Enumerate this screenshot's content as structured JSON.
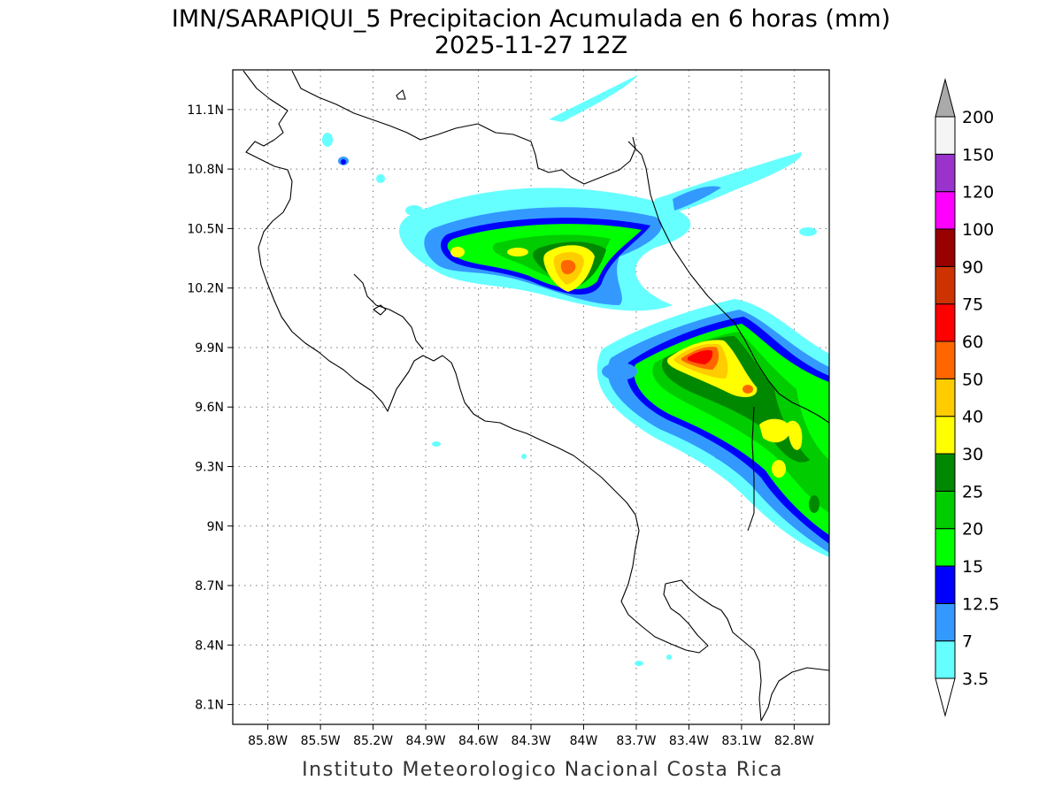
{
  "title": {
    "line1": "IMN/SARAPIQUI_5 Precipitacion Acumulada en 6 horas (mm)",
    "line2": "2025-11-27 12Z"
  },
  "footer": "Instituto Meteorologico Nacional Costa Rica",
  "map": {
    "lon_range": [
      -86.0,
      -82.6
    ],
    "lat_range": [
      8.0,
      11.3
    ],
    "x_ticks": [
      {
        "value": -85.8,
        "label": "85.8W"
      },
      {
        "value": -85.5,
        "label": "85.5W"
      },
      {
        "value": -85.2,
        "label": "85.2W"
      },
      {
        "value": -84.9,
        "label": "84.9W"
      },
      {
        "value": -84.6,
        "label": "84.6W"
      },
      {
        "value": -84.3,
        "label": "84.3W"
      },
      {
        "value": -84.0,
        "label": "84W"
      },
      {
        "value": -83.7,
        "label": "83.7W"
      },
      {
        "value": -83.4,
        "label": "83.4W"
      },
      {
        "value": -83.1,
        "label": "83.1W"
      },
      {
        "value": -82.8,
        "label": "82.8W"
      }
    ],
    "y_ticks": [
      {
        "value": 11.1,
        "label": "11.1N"
      },
      {
        "value": 10.8,
        "label": "10.8N"
      },
      {
        "value": 10.5,
        "label": "10.5N"
      },
      {
        "value": 10.2,
        "label": "10.2N"
      },
      {
        "value": 9.9,
        "label": "9.9N"
      },
      {
        "value": 9.6,
        "label": "9.6N"
      },
      {
        "value": 9.3,
        "label": "9.3N"
      },
      {
        "value": 9.0,
        "label": "9N"
      },
      {
        "value": 8.7,
        "label": "8.7N"
      },
      {
        "value": 8.4,
        "label": "8.4N"
      },
      {
        "value": 8.1,
        "label": "8.1N"
      }
    ],
    "grid": true
  },
  "colorbar": {
    "levels": [
      {
        "label": "3.5",
        "color": "#66ffff"
      },
      {
        "label": "7",
        "color": "#3399ff"
      },
      {
        "label": "12.5",
        "color": "#0000ff"
      },
      {
        "label": "15",
        "color": "#00ff00"
      },
      {
        "label": "20",
        "color": "#00cc00"
      },
      {
        "label": "25",
        "color": "#008800"
      },
      {
        "label": "30",
        "color": "#ffff00"
      },
      {
        "label": "40",
        "color": "#ffcc00"
      },
      {
        "label": "50",
        "color": "#ff6600"
      },
      {
        "label": "60",
        "color": "#ff0000"
      },
      {
        "label": "75",
        "color": "#cc3300"
      },
      {
        "label": "90",
        "color": "#990000"
      },
      {
        "label": "100",
        "color": "#ff00ff"
      },
      {
        "label": "120",
        "color": "#9933cc"
      },
      {
        "label": "150",
        "color": "#f5f5f5"
      },
      {
        "label": "200",
        "color": "#aaaaaa"
      }
    ]
  }
}
